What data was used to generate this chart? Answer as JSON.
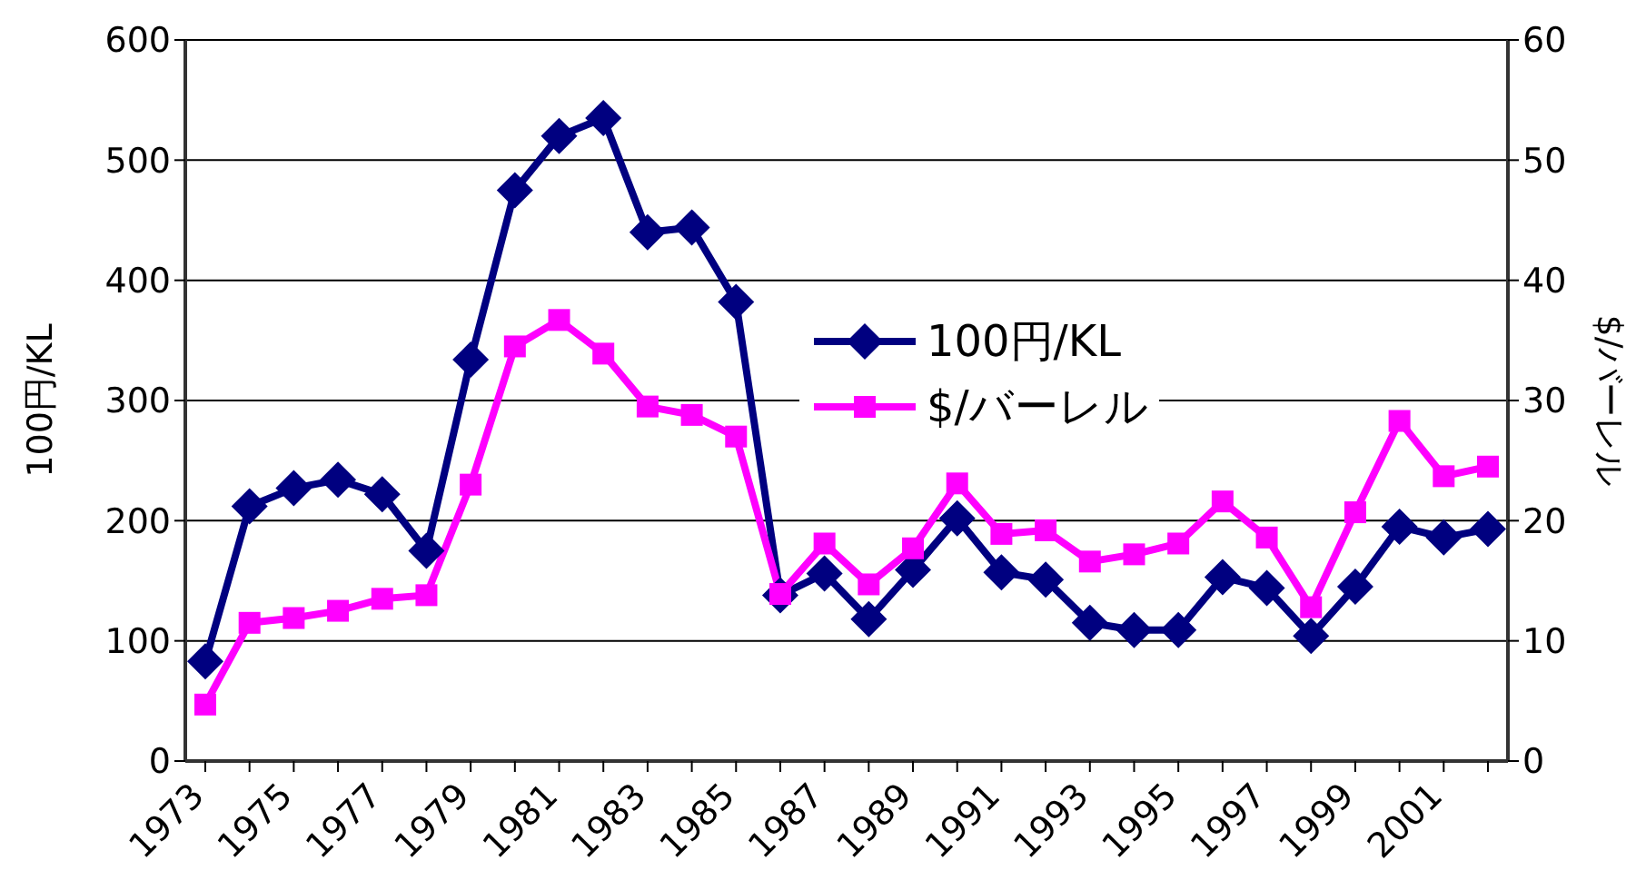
{
  "chart_data": {
    "type": "line",
    "ylabel": "100円/KL",
    "y2label": "$/バーレル",
    "categories": [
      "1973",
      null,
      "1975",
      null,
      "1977",
      null,
      "1979",
      null,
      "1981",
      null,
      "1983",
      null,
      "1985",
      null,
      "1987",
      null,
      "1989",
      null,
      "1991",
      null,
      "1993",
      null,
      "1995",
      null,
      "1997",
      null,
      "1999",
      null,
      "2001",
      null
    ],
    "series": [
      {
        "name": "100円/KL",
        "color": "#000080",
        "marker": "diamond",
        "values": [
          83,
          212,
          227,
          234,
          222,
          175,
          334,
          475,
          520,
          535,
          440,
          444,
          382,
          138,
          156,
          118,
          159,
          202,
          157,
          151,
          115,
          109,
          109,
          153,
          144,
          104,
          145,
          195,
          186,
          193
        ]
      },
      {
        "name": "$/バーレル",
        "color": "#ff00ff",
        "marker": "square",
        "axis": "y2",
        "values": [
          4.7,
          11.5,
          11.9,
          12.5,
          13.5,
          13.8,
          23.0,
          34.5,
          36.7,
          33.9,
          29.5,
          28.8,
          27.0,
          13.9,
          18.1,
          14.7,
          17.7,
          23.1,
          18.9,
          19.2,
          16.6,
          17.2,
          18.1,
          21.6,
          18.6,
          12.8,
          20.7,
          28.3,
          23.7,
          24.5
        ]
      }
    ],
    "ylim": [
      0,
      600
    ],
    "yticks": [
      0,
      100,
      200,
      300,
      400,
      500,
      600
    ],
    "y2lim": [
      0,
      60
    ],
    "y2ticks": [
      0,
      10,
      20,
      30,
      40,
      50,
      60
    ],
    "grid": "y",
    "legend": "right",
    "line_style": "solid"
  }
}
